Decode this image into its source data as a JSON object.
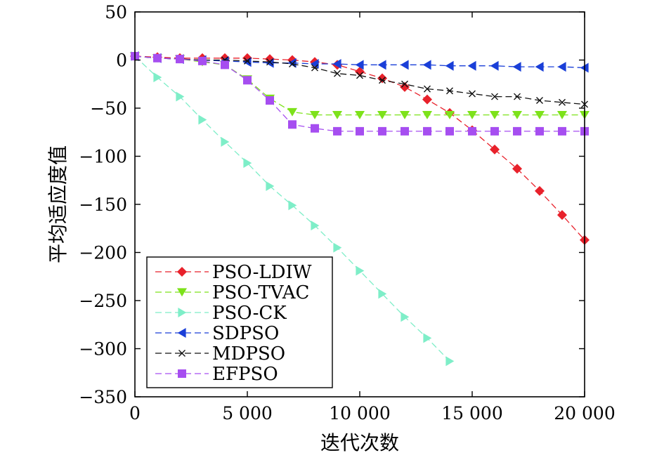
{
  "chart_data": {
    "type": "line",
    "title": "",
    "xlabel": "迭代次数",
    "ylabel": "平均适应度值",
    "xlim": [
      0,
      20000
    ],
    "ylim": [
      -350,
      50
    ],
    "x_ticks": [
      0,
      5000,
      10000,
      15000,
      20000
    ],
    "x_tick_labels": [
      "0",
      "5 000",
      "10 000",
      "15 000",
      "20 000"
    ],
    "y_ticks": [
      50,
      0,
      -50,
      -100,
      -150,
      -200,
      -250,
      -300,
      -350
    ],
    "y_tick_labels": [
      "50",
      "0",
      "−50",
      "−100",
      "−150",
      "−200",
      "−250",
      "−300",
      "−350"
    ],
    "grid": false,
    "legend_position": "bottom-left",
    "series": [
      {
        "name": "PSO-LDIW",
        "color": "#e8212b",
        "marker": "diamond",
        "x": [
          0,
          1000,
          2000,
          3000,
          4000,
          5000,
          6000,
          7000,
          8000,
          9000,
          10000,
          11000,
          12000,
          13000,
          14000,
          15000,
          16000,
          17000,
          18000,
          19000,
          20000
        ],
        "y": [
          4,
          3,
          2,
          2,
          2,
          2,
          1,
          0,
          -2,
          -5,
          -12,
          -19,
          -28,
          -41,
          -55,
          -73,
          -93,
          -113,
          -136,
          -161,
          -187
        ]
      },
      {
        "name": "PSO-TVAC",
        "color": "#7de21a",
        "marker": "triangle-down",
        "x": [
          0,
          1000,
          2000,
          3000,
          4000,
          5000,
          6000,
          7000,
          8000,
          9000,
          10000,
          11000,
          12000,
          13000,
          14000,
          15000,
          16000,
          17000,
          18000,
          19000,
          20000
        ],
        "y": [
          4,
          2,
          1,
          -2,
          -5,
          -20,
          -40,
          -54,
          -57,
          -57,
          -57,
          -57,
          -57,
          -57,
          -57,
          -57,
          -57,
          -57,
          -57,
          -57,
          -57
        ]
      },
      {
        "name": "PSO-CK",
        "color": "#7eeec8",
        "marker": "triangle-right",
        "x": [
          0,
          1000,
          2000,
          3000,
          4000,
          5000,
          6000,
          7000,
          8000,
          9000,
          10000,
          11000,
          12000,
          13000,
          14000
        ],
        "y": [
          4,
          -18,
          -38,
          -62,
          -85,
          -107,
          -131,
          -151,
          -172,
          -195,
          -219,
          -243,
          -267,
          -289,
          -313
        ]
      },
      {
        "name": "SDPSO",
        "color": "#1a3fd8",
        "marker": "triangle-left",
        "x": [
          0,
          1000,
          2000,
          3000,
          4000,
          5000,
          6000,
          7000,
          8000,
          9000,
          10000,
          11000,
          12000,
          13000,
          14000,
          15000,
          16000,
          17000,
          18000,
          19000,
          20000
        ],
        "y": [
          4,
          2,
          1,
          0,
          -1,
          -2,
          -3,
          -3,
          -4,
          -4,
          -5,
          -5,
          -5,
          -5,
          -6,
          -6,
          -6,
          -7,
          -7,
          -7,
          -8
        ]
      },
      {
        "name": "MDPSO",
        "color": "#111111",
        "marker": "x",
        "x": [
          0,
          1000,
          2000,
          3000,
          4000,
          5000,
          6000,
          7000,
          8000,
          9000,
          10000,
          11000,
          12000,
          13000,
          14000,
          15000,
          16000,
          17000,
          18000,
          19000,
          20000
        ],
        "y": [
          4,
          2,
          1,
          0,
          0,
          -1,
          -2,
          -4,
          -8,
          -14,
          -16,
          -21,
          -25,
          -30,
          -32,
          -35,
          -38,
          -38,
          -42,
          -44,
          -46
        ]
      },
      {
        "name": "EFPSO",
        "color": "#a64ef0",
        "marker": "square",
        "x": [
          0,
          1000,
          2000,
          3000,
          4000,
          5000,
          6000,
          7000,
          8000,
          9000,
          10000,
          11000,
          12000,
          13000,
          14000,
          15000,
          16000,
          17000,
          18000,
          19000,
          20000
        ],
        "y": [
          4,
          2,
          1,
          -1,
          -5,
          -21,
          -42,
          -67,
          -71,
          -74,
          -74,
          -74,
          -74,
          -74,
          -74,
          -74,
          -74,
          -74,
          -74,
          -74,
          -74
        ]
      }
    ]
  }
}
